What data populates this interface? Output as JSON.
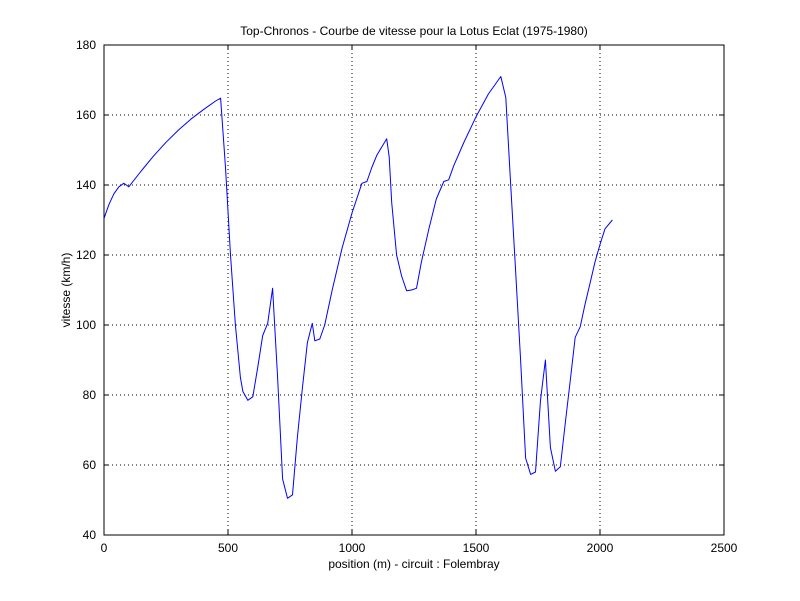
{
  "chart_data": {
    "type": "line",
    "title": "Top-Chronos - Courbe de vitesse pour la Lotus Eclat (1975-1980)",
    "xlabel": "position (m) - circuit : Folembray",
    "ylabel": "vitesse (km/h)",
    "xlim": [
      0,
      2500
    ],
    "ylim": [
      40,
      180
    ],
    "xticks": [
      0,
      500,
      1000,
      1500,
      2000,
      2500
    ],
    "yticks": [
      40,
      60,
      80,
      100,
      120,
      140,
      160,
      180
    ],
    "xtick_labels": [
      "0",
      "500",
      "1000",
      "1500",
      "2000",
      "2500"
    ],
    "ytick_labels": [
      "40",
      "60",
      "80",
      "100",
      "120",
      "140",
      "160",
      "180"
    ],
    "grid": true,
    "grid_style": "dotted",
    "series": [
      {
        "color": "#0000ff",
        "x": [
          0,
          20,
          40,
          60,
          80,
          90,
          100,
          150,
          200,
          250,
          300,
          350,
          400,
          450,
          470,
          490,
          510,
          530,
          550,
          560,
          580,
          600,
          620,
          640,
          660,
          680,
          700,
          720,
          740,
          760,
          780,
          800,
          820,
          840,
          850,
          870,
          890,
          920,
          960,
          1000,
          1040,
          1060,
          1080,
          1100,
          1140,
          1150,
          1160,
          1180,
          1200,
          1220,
          1240,
          1260,
          1280,
          1310,
          1340,
          1370,
          1390,
          1410,
          1450,
          1500,
          1550,
          1600,
          1620,
          1640,
          1660,
          1680,
          1700,
          1720,
          1740,
          1760,
          1780,
          1800,
          1820,
          1840,
          1860,
          1880,
          1900,
          1920,
          1940,
          1960,
          1980,
          2000,
          2020,
          2050
        ],
        "y": [
          130.5,
          134.5,
          137.5,
          139.5,
          140.5,
          140,
          139.5,
          144,
          148.3,
          152.2,
          155.7,
          158.8,
          161.5,
          164,
          164.8,
          145,
          120,
          100,
          85,
          81,
          78.5,
          79.5,
          88,
          97,
          100.5,
          110.5,
          85,
          56,
          50.5,
          51.5,
          68,
          82,
          95,
          100.5,
          95.5,
          96,
          100,
          110,
          122,
          132,
          140.5,
          141,
          145,
          148.5,
          153.2,
          148,
          135,
          120,
          114,
          109.8,
          110,
          110.5,
          118,
          127.5,
          136,
          141,
          141.5,
          145.5,
          152,
          159.5,
          166,
          171,
          165,
          140,
          115,
          90,
          62,
          57.3,
          58,
          78.5,
          90,
          65,
          58.2,
          59.5,
          72,
          84,
          96.5,
          99.5,
          106,
          112,
          118,
          123,
          127.5,
          130
        ]
      }
    ]
  }
}
